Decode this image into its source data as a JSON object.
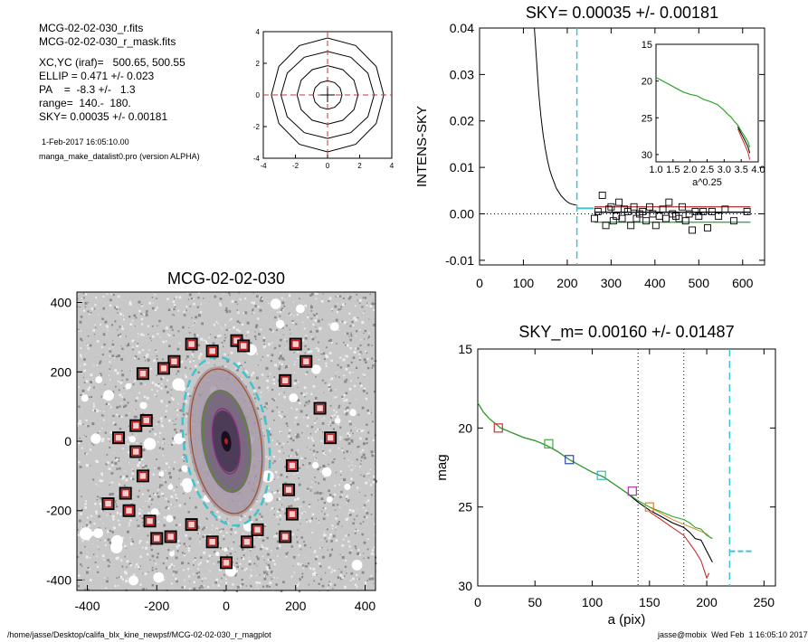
{
  "header": {
    "files": [
      "MCG-02-02-030_r.fits",
      "MCG-02-02-030_r_mask.fits"
    ],
    "params": [
      "XC,YC (iraf)=   500.65, 500.55",
      "ELLIP = 0.471 +/- 0.023",
      "PA    =  -8.3 +/-   1.3",
      "range=  140.-  180.",
      "SKY= 0.00035 +/- 0.00181"
    ],
    "date": "1-Feb-2017 16:05:10.00",
    "program": "manga_make_datalist0.pro (version ALPHA)"
  },
  "footer": {
    "path": "/home/jasse/Desktop/califa_blx_kine_newpsf/MCG-02-02-030_r_magplot",
    "user": "jasse@mobix  Wed Feb  1 16:05:10 2017"
  },
  "chart_data": [
    {
      "id": "contour",
      "type": "contour",
      "xlim": [
        -4,
        4
      ],
      "ylim": [
        -4,
        4
      ],
      "xticks": [
        -4,
        -2,
        0,
        2,
        4
      ],
      "yticks": [
        -4,
        -2,
        0,
        2,
        4
      ],
      "contours": [
        {
          "a": 0.9,
          "b": 0.9
        },
        {
          "a": 1.9,
          "b": 1.85
        },
        {
          "a": 2.9,
          "b": 2.75
        },
        {
          "a": 3.5,
          "b": 3.6
        }
      ],
      "crosshair": [
        0,
        0
      ],
      "crosshair_color": "#cc3333"
    },
    {
      "id": "sky",
      "type": "line",
      "title": "SKY= 0.00035 +/- 0.00181",
      "xlabel": "",
      "ylabel": "INTENS-SKY",
      "xlim": [
        0,
        650
      ],
      "ylim": [
        -0.011,
        0.04
      ],
      "xticks": [
        0,
        100,
        200,
        300,
        400,
        500,
        600
      ],
      "yticks": [
        -0.01,
        0.0,
        0.01,
        0.02,
        0.03,
        0.04
      ],
      "ytick_labels": [
        "-0.01",
        "0.00",
        "0.01",
        "0.02",
        "0.03",
        "0.04"
      ],
      "vline": 222,
      "profile": {
        "x": [
          125,
          130,
          135,
          140,
          145,
          150,
          155,
          160,
          165,
          170,
          175,
          180,
          185,
          190,
          195,
          200,
          205,
          210,
          215,
          220
        ],
        "y": [
          0.04,
          0.033,
          0.026,
          0.021,
          0.017,
          0.014,
          0.0115,
          0.0095,
          0.008,
          0.0068,
          0.0055,
          0.0048,
          0.004,
          0.0035,
          0.003,
          0.0026,
          0.0023,
          0.0021,
          0.002,
          0.0019
        ]
      },
      "squares": {
        "x": [
          262,
          270,
          280,
          288,
          295,
          300,
          305,
          312,
          318,
          325,
          330,
          338,
          345,
          352,
          358,
          365,
          372,
          380,
          388,
          395,
          402,
          410,
          418,
          425,
          432,
          440,
          448,
          455,
          462,
          470,
          478,
          485,
          492,
          500,
          510,
          520,
          530,
          545,
          560,
          580,
          610
        ],
        "y": [
          -0.001,
          0.0005,
          0.004,
          -0.0025,
          0.001,
          0.0015,
          -0.0015,
          -0.0005,
          0.0025,
          -0.001,
          0.001,
          0.0005,
          -0.0025,
          0.0015,
          -0.001,
          0.0,
          0.0005,
          -0.0015,
          0.0015,
          0.0,
          -0.0025,
          -0.0005,
          0.001,
          -0.001,
          0.0025,
          0.0,
          -0.0005,
          -0.001,
          0.0015,
          -0.0015,
          0.0,
          -0.0035,
          0.0005,
          -0.0005,
          0.0005,
          -0.003,
          0.0005,
          -0.0005,
          0.001,
          -0.0015,
          0.0005
        ]
      },
      "levels": [
        {
          "y": 0.0015,
          "color": "#b52a2a"
        },
        {
          "y": 0.00035,
          "color": "#000000"
        },
        {
          "y": -0.0018,
          "color": "#2aa52a"
        }
      ],
      "inset": {
        "xlabel": "a^0.25",
        "xlim": [
          1.0,
          4.0
        ],
        "ylim": [
          15,
          31
        ],
        "xticks": [
          1.0,
          1.5,
          2.0,
          2.5,
          3.0,
          3.5,
          4.0
        ],
        "xtick_labels": [
          "1.0",
          "1.5",
          "2.0",
          "2.5",
          "3.0",
          "3.5",
          "4.0"
        ],
        "yticks": [
          15,
          20,
          25,
          30
        ],
        "x": [
          1.0,
          1.2,
          1.4,
          1.6,
          1.8,
          2.0,
          2.2,
          2.4,
          2.6,
          2.8,
          3.0,
          3.1,
          3.2,
          3.3,
          3.4,
          3.5,
          3.6,
          3.7,
          3.75
        ],
        "y": [
          19.5,
          20.0,
          20.5,
          21.0,
          21.5,
          21.8,
          22.0,
          22.5,
          22.8,
          23.2,
          24.0,
          24.5,
          24.9,
          25.5,
          26.0,
          26.8,
          27.5,
          28.3,
          29.0
        ]
      }
    },
    {
      "id": "image",
      "type": "scatter",
      "title": "MCG-02-02-030",
      "xlim": [
        -430,
        430
      ],
      "ylim": [
        -430,
        430
      ],
      "xticks": [
        -400,
        -200,
        0,
        200,
        400
      ],
      "yticks": [
        -400,
        -200,
        0,
        200,
        400
      ],
      "ellipses": [
        {
          "a": 95,
          "b": 38,
          "color": "#8a2a80"
        },
        {
          "a": 145,
          "b": 65,
          "color": "#5b8a2a"
        },
        {
          "a": 210,
          "b": 100,
          "color": "#a0522d"
        },
        {
          "a": 245,
          "b": 122,
          "color": "#3ec4d0",
          "dashed": true
        }
      ],
      "x": [
        -100,
        -40,
        30,
        50,
        200,
        230,
        170,
        -150,
        -180,
        -240,
        -310,
        -260,
        -260,
        -240,
        -230,
        -340,
        -290,
        -280,
        -220,
        -200,
        -160,
        -100,
        -40,
        0,
        60,
        90,
        170,
        190,
        180,
        270,
        300,
        190
      ],
      "y": [
        280,
        260,
        290,
        275,
        280,
        230,
        175,
        230,
        210,
        195,
        10,
        -30,
        45,
        -100,
        60,
        -180,
        -150,
        -200,
        -230,
        -280,
        -275,
        -240,
        -290,
        -350,
        -290,
        -255,
        -275,
        -210,
        -140,
        95,
        10,
        -70
      ]
    },
    {
      "id": "mag",
      "type": "line",
      "title": "SKY_m=  0.00160 +/- 0.01487",
      "xlabel": "a (pix)",
      "ylabel": "mag",
      "xlim": [
        0,
        260
      ],
      "ylim": [
        15,
        30
      ],
      "xticks": [
        0,
        50,
        100,
        150,
        200,
        250
      ],
      "yticks": [
        15,
        20,
        25,
        30
      ],
      "vlines_dotted": [
        140,
        180
      ],
      "vline_dashed": 220,
      "sky_level": {
        "x": [
          220,
          240
        ],
        "y": 27.8
      },
      "series": [
        {
          "color": "#000000",
          "x": [
            0,
            5,
            10,
            20,
            30,
            40,
            50,
            60,
            70,
            80,
            90,
            100,
            110,
            120,
            130,
            140,
            150,
            160,
            170,
            180,
            185,
            190,
            195,
            200,
            205
          ],
          "y": [
            18.4,
            19.0,
            19.4,
            20.0,
            20.3,
            20.6,
            20.8,
            21.1,
            21.5,
            22.0,
            22.4,
            22.8,
            23.1,
            23.6,
            24.1,
            24.7,
            25.2,
            25.6,
            26.0,
            26.3,
            26.6,
            27.0,
            27.1,
            27.8,
            28.5
          ]
        },
        {
          "color": "#2aa52a",
          "x": [
            0,
            5,
            10,
            20,
            30,
            40,
            50,
            60,
            70,
            80,
            90,
            100,
            110,
            120,
            130,
            140,
            150,
            160,
            170,
            180,
            185,
            190,
            195,
            200,
            205
          ],
          "y": [
            18.4,
            19.0,
            19.4,
            20.0,
            20.3,
            20.6,
            20.8,
            21.1,
            21.5,
            22.0,
            22.4,
            22.8,
            23.1,
            23.6,
            24.1,
            24.6,
            25.0,
            25.3,
            25.6,
            25.8,
            26.0,
            26.3,
            26.4,
            26.8,
            27.0
          ]
        },
        {
          "color": "#cc2a2a",
          "x": [
            150,
            160,
            170,
            180,
            185,
            190,
            195,
            200,
            202
          ],
          "y": [
            25.3,
            25.8,
            26.3,
            26.8,
            27.3,
            27.8,
            28.4,
            29.5,
            29.2
          ]
        }
      ],
      "markers": [
        {
          "x": 18,
          "y": 20.0,
          "color": "#cc3333"
        },
        {
          "x": 62,
          "y": 21.0,
          "color": "#44aa44"
        },
        {
          "x": 80,
          "y": 22.0,
          "color": "#3344aa"
        },
        {
          "x": 108,
          "y": 23.0,
          "color": "#33bbbb"
        },
        {
          "x": 135,
          "y": 24.0,
          "color": "#aa33aa"
        },
        {
          "x": 150,
          "y": 25.0,
          "color": "#cc8833"
        }
      ]
    }
  ]
}
